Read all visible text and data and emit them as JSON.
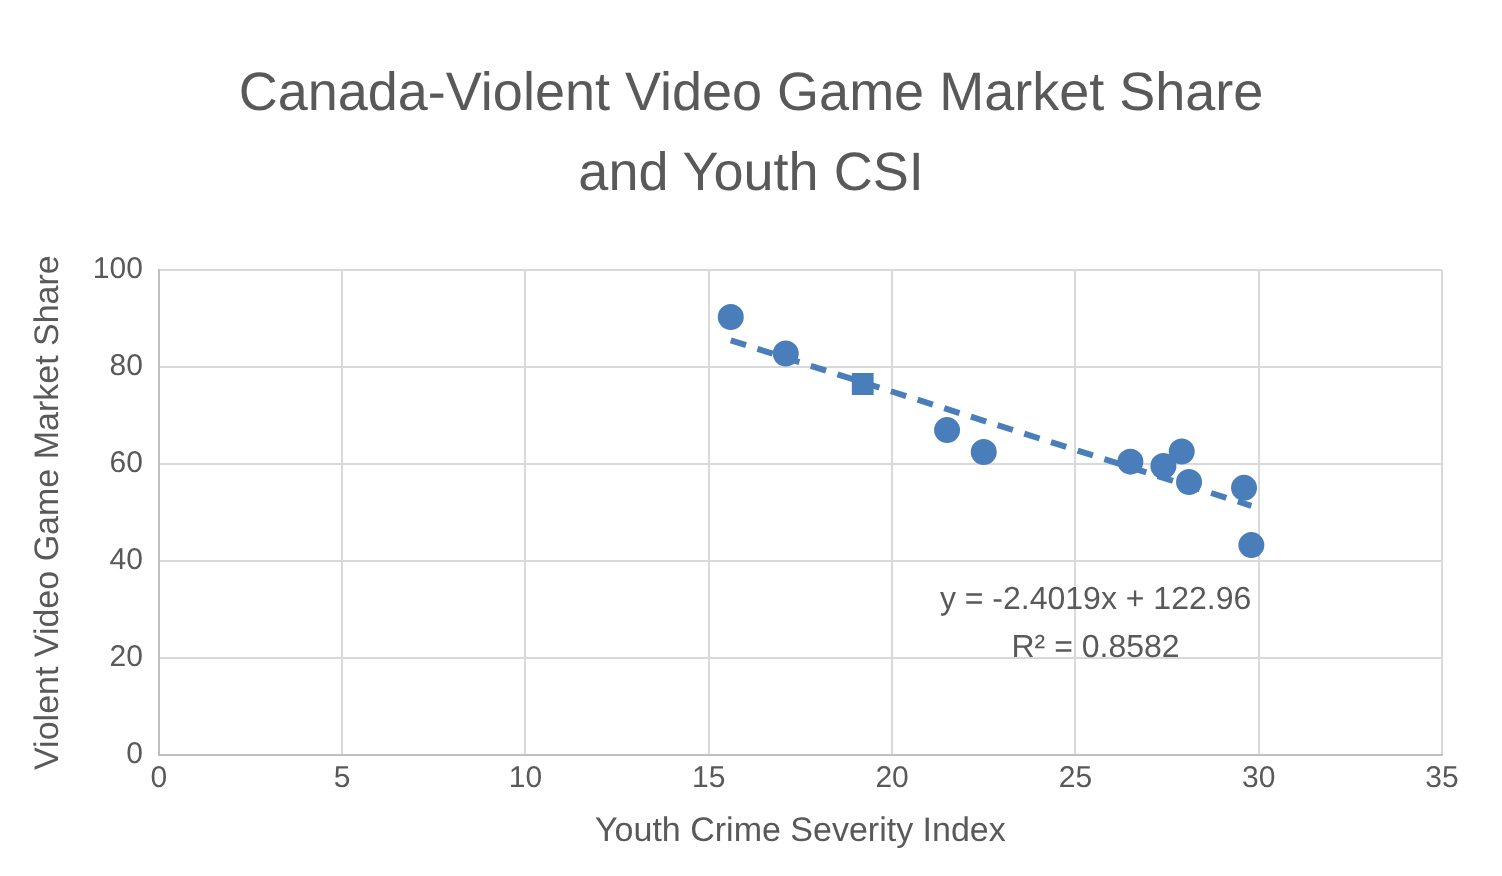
{
  "chart_data": {
    "type": "scatter",
    "title": "Canada-Violent Video Game Market Share and Youth CSI",
    "xlabel": "Youth Crime Severity Index",
    "ylabel": "Violent Video Game Market Share",
    "series": [
      {
        "color": "#4a7ebb",
        "marker": "circle",
        "x": [
          15.6,
          17.1,
          21.5,
          22.5,
          26.5,
          27.4,
          27.9,
          28.1,
          29.6,
          29.8
        ],
        "values": [
          90.3,
          82.8,
          67.0,
          62.5,
          60.5,
          59.6,
          62.6,
          56.3,
          55.1,
          43.3
        ]
      },
      {
        "color": "#4a7ebb",
        "marker": "square",
        "x": [
          19.2
        ],
        "values": [
          76.5
        ]
      },
      {
        "type": "line",
        "color": "#4a7ebb",
        "line_style": "dashed",
        "marker": "none",
        "x": [
          15.6,
          29.8
        ],
        "values": [
          85.5,
          51.4
        ]
      }
    ],
    "xlim": [
      0,
      35
    ],
    "xticks": [
      0,
      5,
      10,
      15,
      20,
      25,
      30,
      35
    ],
    "ylim": [
      0,
      100
    ],
    "yticks": [
      0,
      20,
      40,
      60,
      80,
      100
    ],
    "grid": true,
    "legend": false,
    "annotations": [
      "y = -2.4019x + 122.96",
      "R² = 0.8582"
    ]
  }
}
